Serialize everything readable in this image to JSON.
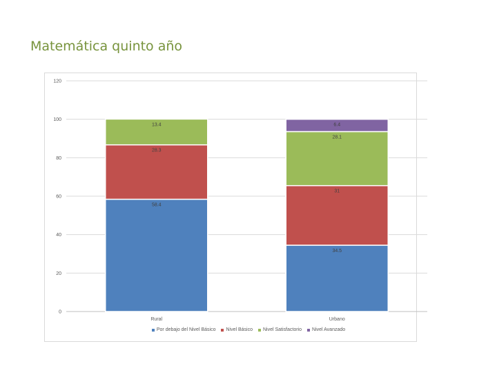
{
  "slide": {
    "title": "Matemática quinto año"
  },
  "chart_data": {
    "type": "bar",
    "stacked": true,
    "categories": [
      "Rural",
      "Urbano"
    ],
    "series": [
      {
        "name": "Por debajo del Nivel Básico",
        "color": "#4f81bd",
        "values": [
          58.4,
          34.5
        ],
        "labels": [
          "58.4",
          "34.5"
        ]
      },
      {
        "name": "Nivel Básico",
        "color": "#c0504d",
        "values": [
          28.3,
          31
        ],
        "labels": [
          "28.3",
          "31"
        ]
      },
      {
        "name": "Nivel Satisfactorio",
        "color": "#9bbb59",
        "values": [
          13.4,
          28.1
        ],
        "labels": [
          "13.4",
          "28.1"
        ]
      },
      {
        "name": "Nivel Avanzado",
        "color": "#8064a2",
        "values": [
          null,
          6.4
        ],
        "labels": [
          null,
          "6.4"
        ]
      }
    ],
    "yticks": [
      "0",
      "20",
      "40",
      "60",
      "80",
      "100",
      "120"
    ],
    "ylim": [
      0,
      120
    ],
    "grid": true,
    "legend_position": "bottom"
  }
}
